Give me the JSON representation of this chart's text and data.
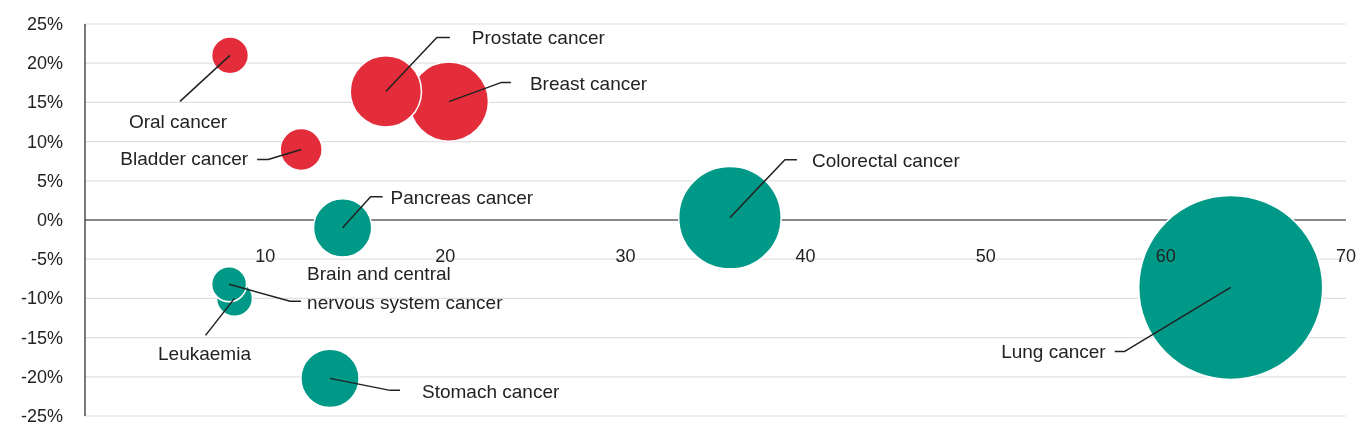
{
  "chart_data": {
    "type": "bubble",
    "relative": false,
    "xlim": [
      0,
      70
    ],
    "xticks": [
      10,
      20,
      30,
      40,
      50,
      60,
      70
    ],
    "ylim": [
      -25,
      25
    ],
    "yticks": [
      {
        "value": -25,
        "label": "-25%"
      },
      {
        "value": -20,
        "label": "-20%"
      },
      {
        "value": -15,
        "label": "-15%"
      },
      {
        "value": -10,
        "label": "-10%"
      },
      {
        "value": -5,
        "label": "-5%"
      },
      {
        "value": 0,
        "label": "0%"
      },
      {
        "value": 5,
        "label": "5%"
      },
      {
        "value": 10,
        "label": "10%"
      },
      {
        "value": 15,
        "label": "15%"
      },
      {
        "value": 20,
        "label": "20%"
      },
      {
        "value": 25,
        "label": "25%"
      }
    ],
    "grid": "y",
    "series": [
      {
        "name": "Oral cancer",
        "color": "#e32d3a",
        "x": [
          8.05
        ],
        "values": [
          21
        ],
        "sizes": [
          0.04
        ]
      },
      {
        "name": "Breast cancer",
        "color": "#e32d3a",
        "x": [
          20.2
        ],
        "values": [
          15.1
        ],
        "sizes": [
          0.185
        ]
      },
      {
        "name": "Prostate cancer",
        "color": "#e32d3a",
        "x": [
          16.7
        ],
        "values": [
          16.4
        ],
        "sizes": [
          0.15
        ]
      },
      {
        "name": "Bladder cancer",
        "color": "#e32d3a",
        "x": [
          12
        ],
        "values": [
          9
        ],
        "sizes": [
          0.052
        ]
      },
      {
        "name": "Pancreas cancer",
        "color": "#009987",
        "x": [
          14.3
        ],
        "values": [
          -1
        ],
        "sizes": [
          0.1
        ]
      },
      {
        "name": "Colorectal cancer",
        "color": "#009987",
        "x": [
          35.8
        ],
        "values": [
          0.3
        ],
        "sizes": [
          0.31
        ]
      },
      {
        "name": "Lung cancer",
        "color": "#009987",
        "x": [
          63.6
        ],
        "values": [
          -8.6
        ],
        "sizes": [
          1
        ]
      },
      {
        "name": "Leukaemia",
        "color": "#009987",
        "x": [
          8.3
        ],
        "values": [
          -10
        ],
        "sizes": [
          0.038
        ]
      },
      {
        "name": "Brain and central\nnervous system cancer",
        "color": "#009987",
        "x": [
          8
        ],
        "values": [
          -8.2
        ],
        "sizes": [
          0.036
        ]
      },
      {
        "name": "Stomach cancer",
        "color": "#009987",
        "x": [
          13.6
        ],
        "values": [
          -20.2
        ],
        "sizes": [
          0.1
        ]
      }
    ]
  }
}
